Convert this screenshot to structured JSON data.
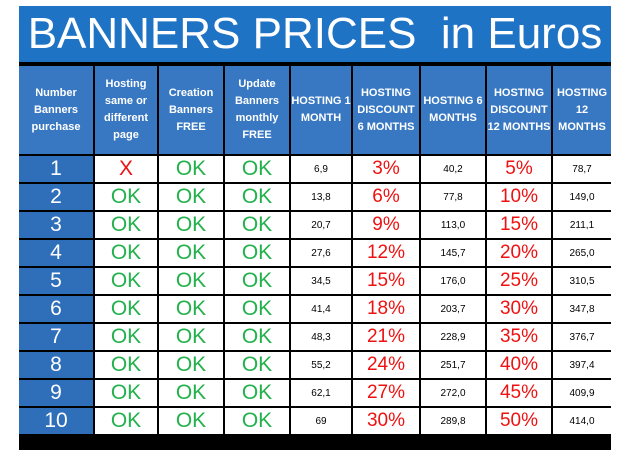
{
  "title": "BANNERS PRICES  in Euros",
  "headers": {
    "number": "Number Banners purchase",
    "hosting_page": "Hosting same or different page",
    "creation": "Creation Banners FREE",
    "update": "Update Banners monthly FREE",
    "h1": "HOSTING 1 MONTH",
    "d6": "HOSTING DISCOUNT 6 MONTHS",
    "h6": "HOSTING 6 MONTHS",
    "d12": "HOSTING DISCOUNT 12 MONTHS",
    "h12": "HOSTING 12 MONTHS"
  },
  "rows": [
    {
      "n": "1",
      "host": "X",
      "creation": "OK",
      "update": "OK",
      "h1": "6,9",
      "d6": "3%",
      "h6": "40,2",
      "d12": "5%",
      "h12": "78,7"
    },
    {
      "n": "2",
      "host": "OK",
      "creation": "OK",
      "update": "OK",
      "h1": "13,8",
      "d6": "6%",
      "h6": "77,8",
      "d12": "10%",
      "h12": "149,0"
    },
    {
      "n": "3",
      "host": "OK",
      "creation": "OK",
      "update": "OK",
      "h1": "20,7",
      "d6": "9%",
      "h6": "113,0",
      "d12": "15%",
      "h12": "211,1"
    },
    {
      "n": "4",
      "host": "OK",
      "creation": "OK",
      "update": "OK",
      "h1": "27,6",
      "d6": "12%",
      "h6": "145,7",
      "d12": "20%",
      "h12": "265,0"
    },
    {
      "n": "5",
      "host": "OK",
      "creation": "OK",
      "update": "OK",
      "h1": "34,5",
      "d6": "15%",
      "h6": "176,0",
      "d12": "25%",
      "h12": "310,5"
    },
    {
      "n": "6",
      "host": "OK",
      "creation": "OK",
      "update": "OK",
      "h1": "41,4",
      "d6": "18%",
      "h6": "203,7",
      "d12": "30%",
      "h12": "347,8"
    },
    {
      "n": "7",
      "host": "OK",
      "creation": "OK",
      "update": "OK",
      "h1": "48,3",
      "d6": "21%",
      "h6": "228,9",
      "d12": "35%",
      "h12": "376,7"
    },
    {
      "n": "8",
      "host": "OK",
      "creation": "OK",
      "update": "OK",
      "h1": "55,2",
      "d6": "24%",
      "h6": "251,7",
      "d12": "40%",
      "h12": "397,4"
    },
    {
      "n": "9",
      "host": "OK",
      "creation": "OK",
      "update": "OK",
      "h1": "62,1",
      "d6": "27%",
      "h6": "272,0",
      "d12": "45%",
      "h12": "409,9"
    },
    {
      "n": "10",
      "host": "OK",
      "creation": "OK",
      "update": "OK",
      "h1": "69",
      "d6": "30%",
      "h6": "289,8",
      "d12": "50%",
      "h12": "414,0"
    }
  ]
}
